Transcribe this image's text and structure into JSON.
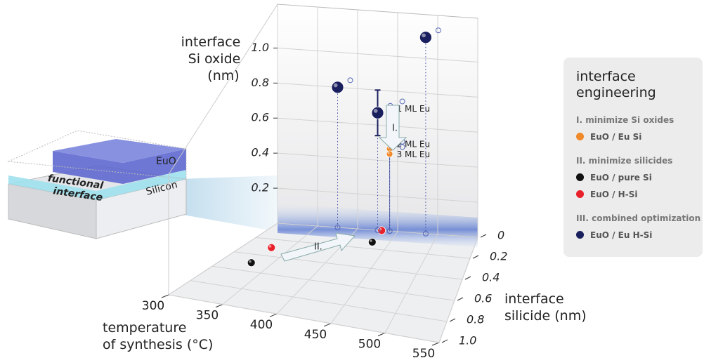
{
  "chart_data": {
    "type": "scatter3d",
    "x_label": [
      "temperature",
      "of synthesis  (°C)"
    ],
    "y_label": [
      "interface",
      "silicide (nm)"
    ],
    "z_label": [
      "interface",
      "Si oxide",
      "(nm)"
    ],
    "xlim": [
      300,
      550
    ],
    "xticks": [
      300,
      350,
      400,
      450,
      500,
      550
    ],
    "ylim": [
      0,
      1
    ],
    "yticks": [
      0,
      0.2,
      0.4,
      0.6,
      0.8,
      {
        "value": 1,
        "label": "1.0"
      }
    ],
    "zlim": [
      0,
      1.25
    ],
    "zticks": [
      0.2,
      0.4,
      0.6,
      0.8,
      {
        "value": 1,
        "label": "1.0"
      }
    ],
    "grid": true,
    "legend_title": "interface engineering",
    "groups": [
      {
        "title": "I. minimize Si oxides",
        "series": [
          {
            "name": "EuO / Eu Si",
            "color": "#f0892a",
            "x": [
              440,
              440,
              440
            ],
            "y": [
              0,
              0,
              0
            ],
            "z": [
              0.7,
              0.47,
              0.44
            ],
            "point_labels": [
              "1 ML Eu",
              "2 ML Eu",
              "3 ML Eu"
            ]
          }
        ]
      },
      {
        "title": "II. minimize silicides",
        "series": [
          {
            "name": "EuO / pure Si",
            "color": "#111111",
            "x": [
              330,
              430
            ],
            "y": [
              0.5,
              0.13
            ],
            "z": [
              0,
              0
            ]
          },
          {
            "name": "EuO / H-Si",
            "color": "#e8202a",
            "x": [
              330,
              430
            ],
            "y": [
              0.3,
              0
            ],
            "z": [
              0,
              0
            ]
          }
        ]
      },
      {
        "title": "III. combined optimization",
        "series": [
          {
            "name": "EuO / Eu H-Si",
            "color": "#1a1f5e",
            "x": [
              375,
              425,
              485
            ],
            "y": [
              0,
              0,
              0
            ],
            "z": [
              0.8,
              0.67,
              1.12
            ],
            "errors": [
              null,
              0.13,
              null
            ]
          }
        ]
      }
    ],
    "arrow_labels": [
      "I.",
      "II."
    ],
    "schematic_labels": {
      "top_layer": "EuO",
      "interface": [
        "functional",
        "interface"
      ],
      "substrate": "Silicon"
    }
  }
}
